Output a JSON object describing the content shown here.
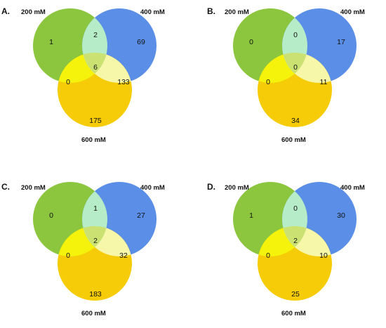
{
  "colors": {
    "g": "#8cc63f",
    "b": "#5b8ee6",
    "y": "#f5cc07",
    "gb": "#b6ecc8",
    "gy": "#f5f20b",
    "by": "#f6f7a8",
    "gby": "#cbe171"
  },
  "panels": [
    {
      "label": "A.",
      "sets": {
        "a": "200 mM",
        "b": "400 mM",
        "c": "600 mM"
      },
      "values": {
        "a": "1",
        "b": "69",
        "c": "175",
        "ab": "2",
        "ac": "0",
        "bc": "133",
        "abc": "6"
      }
    },
    {
      "label": "B.",
      "sets": {
        "a": "200 mM",
        "b": "400 mM",
        "c": "600 mM"
      },
      "values": {
        "a": "0",
        "b": "17",
        "c": "34",
        "ab": "0",
        "ac": "0",
        "bc": "11",
        "abc": "0"
      }
    },
    {
      "label": "C.",
      "sets": {
        "a": "200 mM",
        "b": "400 mM",
        "c": "600 mM"
      },
      "values": {
        "a": "0",
        "b": "27",
        "c": "183",
        "ab": "1",
        "ac": "0",
        "bc": "32",
        "abc": "2"
      }
    },
    {
      "label": "D.",
      "sets": {
        "a": "200 mM",
        "b": "400 mM",
        "c": "600 mM"
      },
      "values": {
        "a": "1",
        "b": "30",
        "c": "25",
        "ab": "0",
        "ac": "0",
        "bc": "10",
        "abc": "2"
      }
    }
  ]
}
